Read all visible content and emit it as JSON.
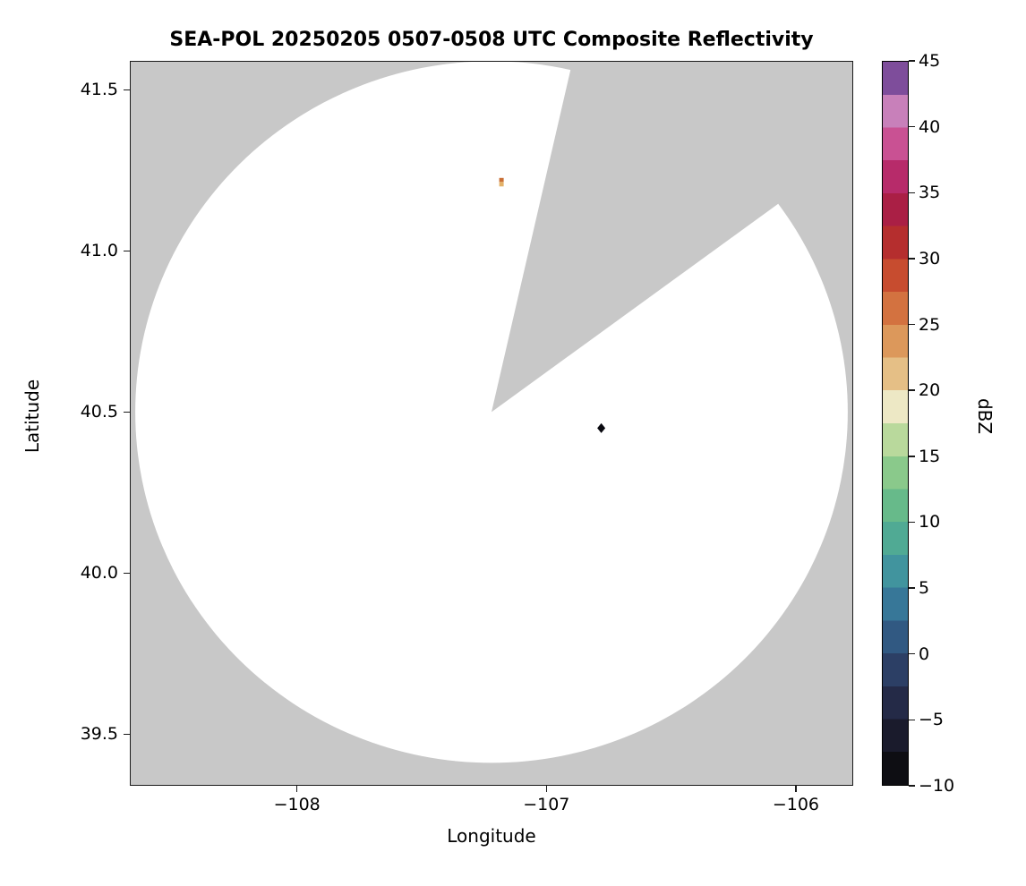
{
  "chart_data": {
    "type": "heatmap",
    "title": "SEA-POL 20250205 0507-0508 UTC Composite Reflectivity",
    "xlabel": "Longitude",
    "ylabel": "Latitude",
    "xlim": [
      -108.67,
      -105.77
    ],
    "ylim": [
      39.34,
      41.59
    ],
    "grid": false,
    "nodata_color": "#c8c8c8",
    "coverage_color": "#ffffff",
    "xticks": {
      "values": [
        -108,
        -107,
        -106
      ],
      "labels": [
        "−108",
        "−107",
        "−106"
      ]
    },
    "yticks": {
      "values": [
        41.5,
        41.0,
        40.5,
        40.0,
        39.5
      ],
      "labels": [
        "41.5",
        "41.0",
        "40.5",
        "40.0",
        "39.5"
      ]
    },
    "radar": {
      "center_lon": -107.22,
      "center_lat": 40.5,
      "range_lon_deg": 1.428,
      "range_lat_deg": 1.089,
      "blocked_sector_azimuths_deg": [
        13,
        54
      ]
    },
    "echoes": [
      {
        "lon": -107.18,
        "lat": 41.21,
        "dbz_approx": 22,
        "shape": "speck",
        "colors": [
          "#c96f35",
          "#e3b168"
        ]
      },
      {
        "lon": -106.78,
        "lat": 40.45,
        "dbz_approx": -9,
        "shape": "diamond",
        "colors": [
          "#0a0a10"
        ]
      }
    ],
    "colorbar": {
      "label": "dBZ",
      "min": -10,
      "max": 45,
      "ticks": {
        "values": [
          45,
          40,
          35,
          30,
          25,
          20,
          15,
          10,
          5,
          0,
          -5,
          -10
        ],
        "labels": [
          "45",
          "40",
          "35",
          "30",
          "25",
          "20",
          "15",
          "10",
          "5",
          "0",
          "−5",
          "−10"
        ]
      },
      "stops": [
        {
          "v": -10,
          "c": "#060606"
        },
        {
          "v": -7.5,
          "c": "#15151f"
        },
        {
          "v": -5,
          "c": "#1f2138"
        },
        {
          "v": -2.5,
          "c": "#293356"
        },
        {
          "v": 0,
          "c": "#2e4a74"
        },
        {
          "v": 2.5,
          "c": "#33678f"
        },
        {
          "v": 5,
          "c": "#3a87a0"
        },
        {
          "v": 7.5,
          "c": "#47a19c"
        },
        {
          "v": 10,
          "c": "#58b38c"
        },
        {
          "v": 12.5,
          "c": "#76c188"
        },
        {
          "v": 15,
          "c": "#9dd08e"
        },
        {
          "v": 17,
          "c": "#c9dfa4"
        },
        {
          "v": 18.5,
          "c": "#eeeccc"
        },
        {
          "v": 20,
          "c": "#e9d3a0"
        },
        {
          "v": 22.5,
          "c": "#e0aa6c"
        },
        {
          "v": 25,
          "c": "#d8854a"
        },
        {
          "v": 27.5,
          "c": "#cd5e35"
        },
        {
          "v": 30,
          "c": "#c03a28"
        },
        {
          "v": 32.5,
          "c": "#a92134"
        },
        {
          "v": 35,
          "c": "#ab1c55"
        },
        {
          "v": 37.5,
          "c": "#c23a7f"
        },
        {
          "v": 40,
          "c": "#cf68a6"
        },
        {
          "v": 42,
          "c": "#c38fc6"
        },
        {
          "v": 43.5,
          "c": "#8a57a7"
        },
        {
          "v": 45,
          "c": "#3f1b5c"
        }
      ]
    }
  }
}
